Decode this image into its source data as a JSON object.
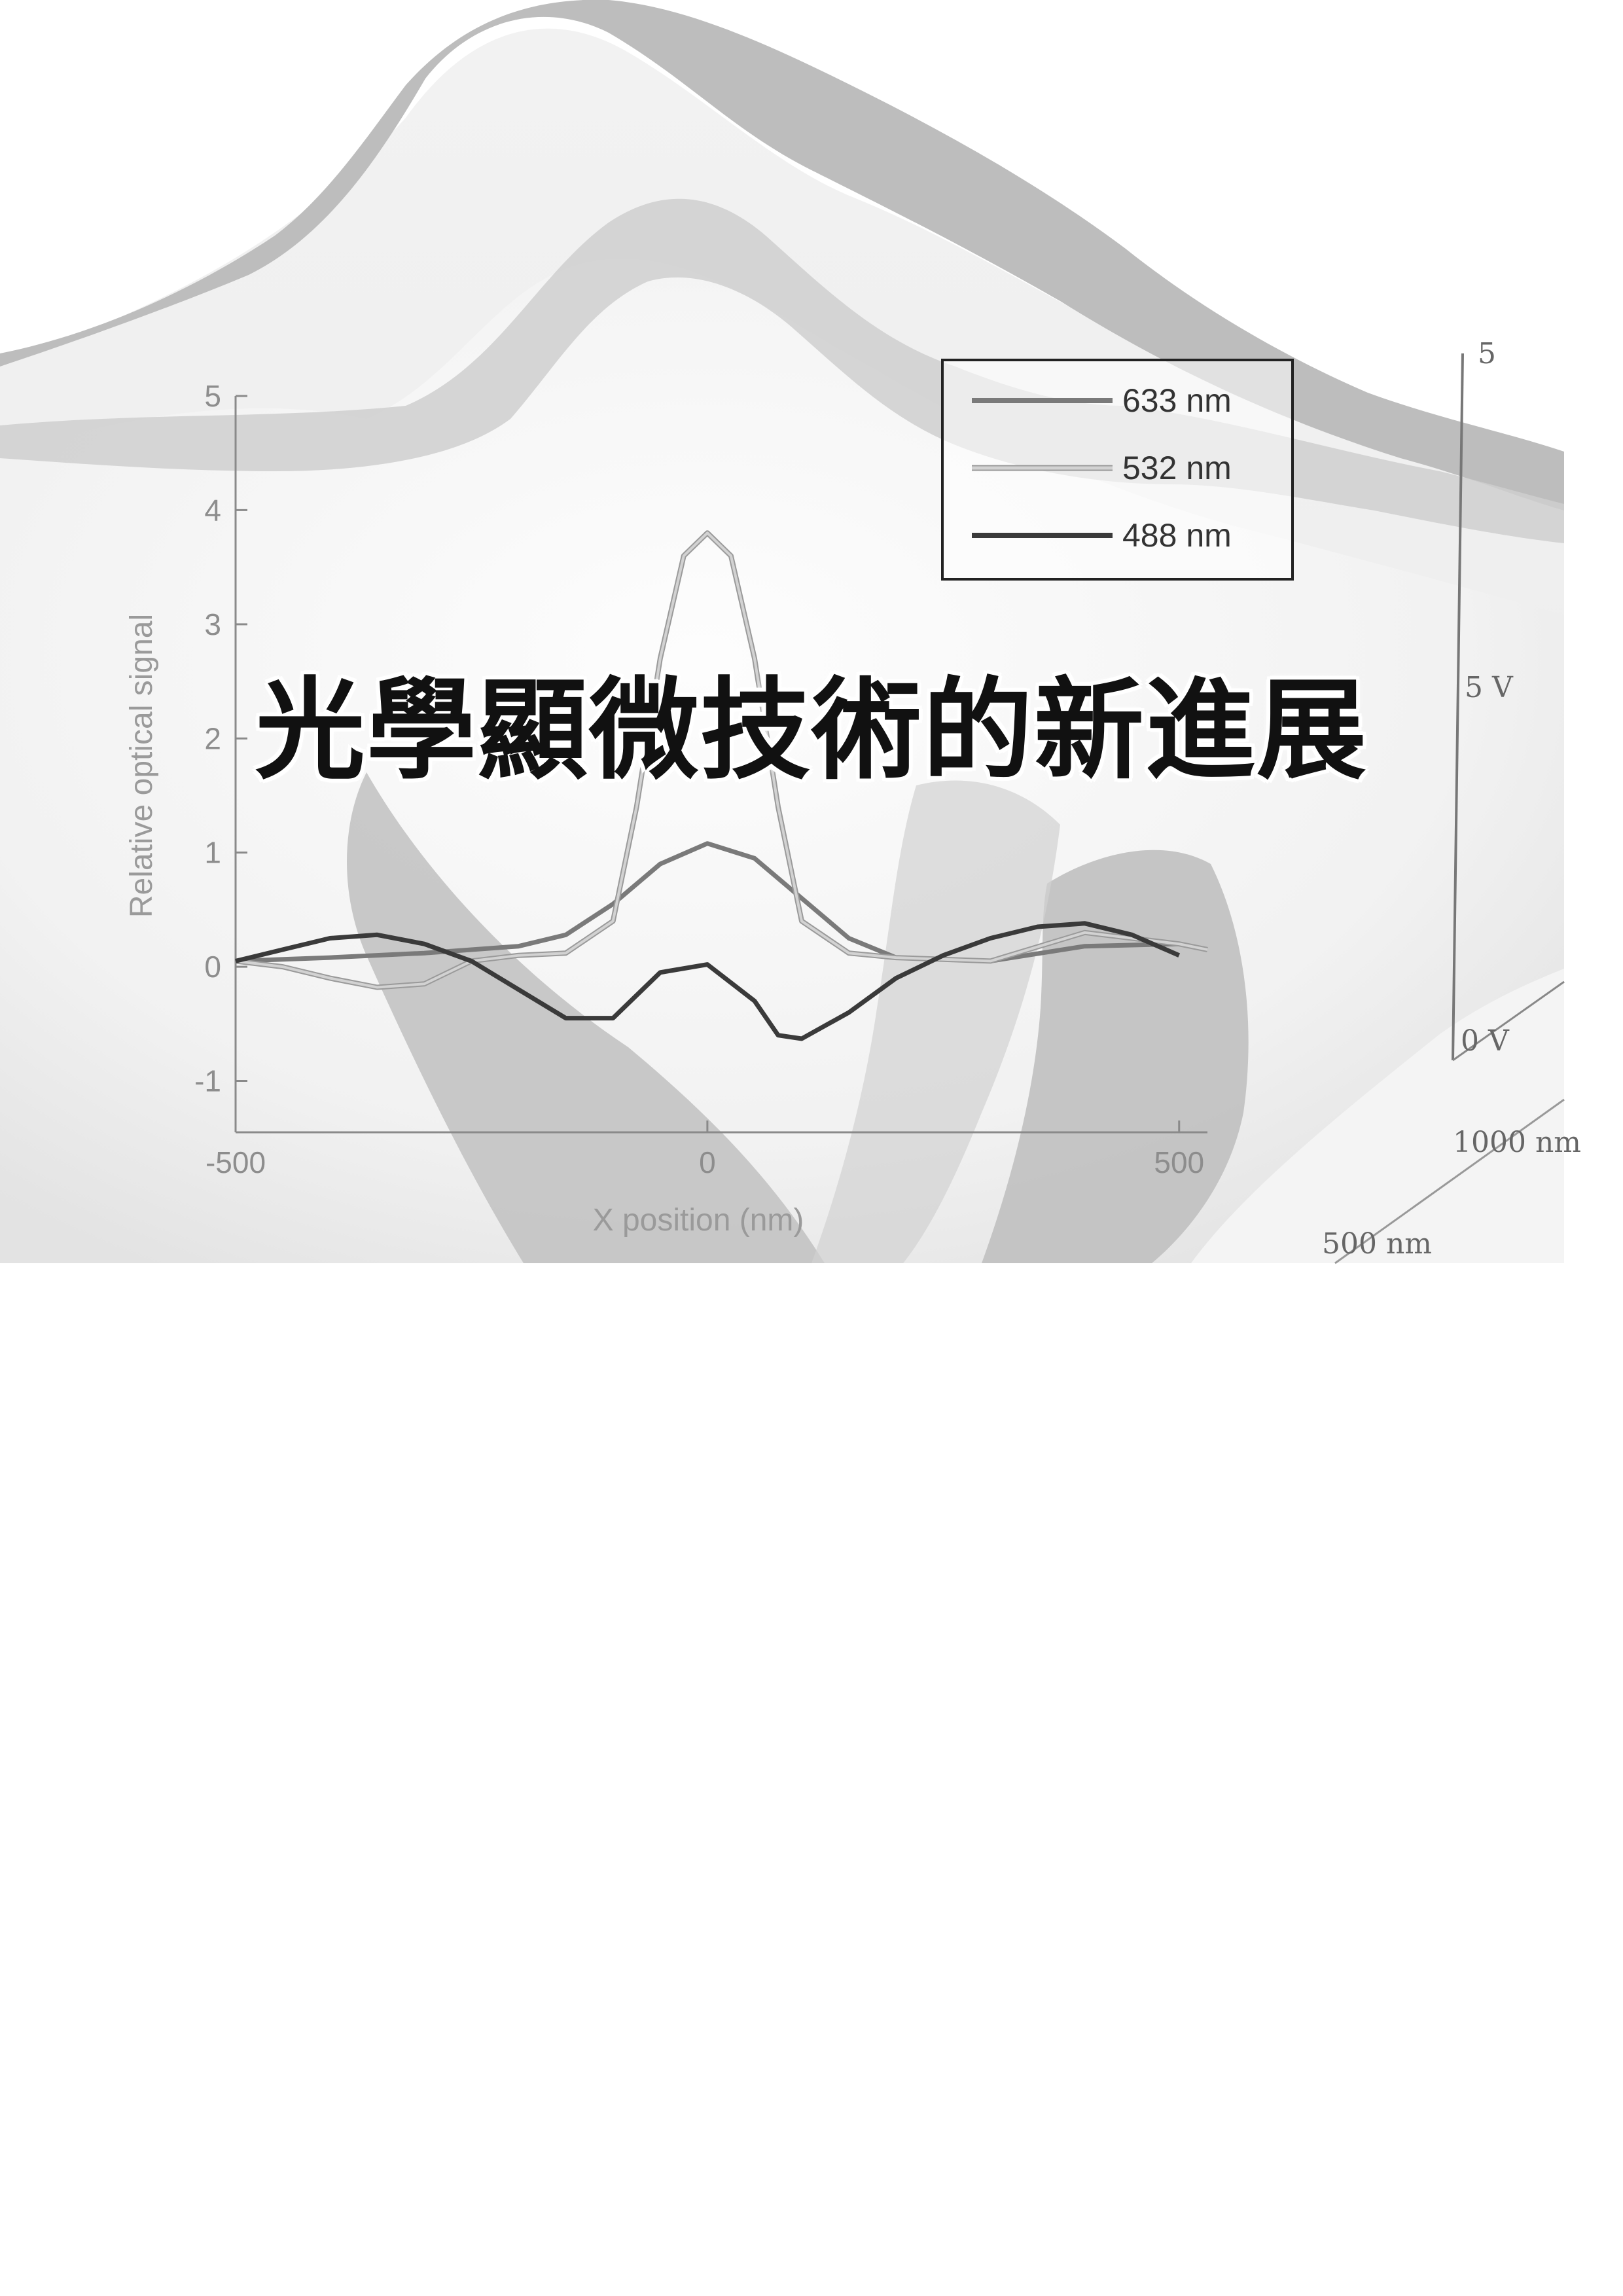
{
  "title": "光學顯微技術的新進展",
  "background_scale": {
    "label_top": "5",
    "label_mid": "5 V",
    "label_zero": "0 V",
    "label_x": "1000 nm",
    "label_y": "500 nm"
  },
  "chart_data": {
    "type": "line",
    "xlabel": "X position (nm)",
    "ylabel": "Relative optical signal",
    "xlim": [
      -500,
      530
    ],
    "ylim": [
      -1.45,
      5
    ],
    "xticks": [
      -500,
      0,
      500
    ],
    "yticks": [
      -1,
      0,
      1,
      2,
      3,
      4,
      5
    ],
    "legend_position": "top-right",
    "series": [
      {
        "name": "633 nm",
        "color": "#7a7a7a",
        "x": [
          -500,
          -400,
          -300,
          -200,
          -150,
          -100,
          -50,
          0,
          50,
          100,
          150,
          200,
          300,
          400,
          500
        ],
        "y": [
          0.05,
          0.08,
          0.12,
          0.18,
          0.28,
          0.55,
          0.9,
          1.08,
          0.95,
          0.6,
          0.25,
          0.08,
          0.05,
          0.18,
          0.2
        ]
      },
      {
        "name": "532 nm",
        "color": "#d2d2d2",
        "x": [
          -500,
          -450,
          -400,
          -350,
          -300,
          -250,
          -200,
          -150,
          -100,
          -75,
          -50,
          -25,
          0,
          25,
          50,
          75,
          100,
          150,
          200,
          300,
          400,
          500,
          530
        ],
        "y": [
          0.05,
          0.0,
          -0.1,
          -0.18,
          -0.15,
          0.05,
          0.1,
          0.12,
          0.4,
          1.4,
          2.7,
          3.6,
          3.8,
          3.6,
          2.7,
          1.4,
          0.4,
          0.12,
          0.08,
          0.05,
          0.3,
          0.2,
          0.15
        ]
      },
      {
        "name": "488 nm",
        "color": "#3a3a3a",
        "x": [
          -500,
          -450,
          -400,
          -350,
          -300,
          -250,
          -200,
          -150,
          -100,
          -50,
          0,
          50,
          75,
          100,
          150,
          200,
          250,
          300,
          350,
          400,
          450,
          500
        ],
        "y": [
          0.05,
          0.15,
          0.25,
          0.28,
          0.2,
          0.05,
          -0.2,
          -0.45,
          -0.45,
          -0.05,
          0.02,
          -0.3,
          -0.6,
          -0.63,
          -0.4,
          -0.1,
          0.1,
          0.25,
          0.35,
          0.38,
          0.28,
          0.1
        ]
      }
    ]
  }
}
